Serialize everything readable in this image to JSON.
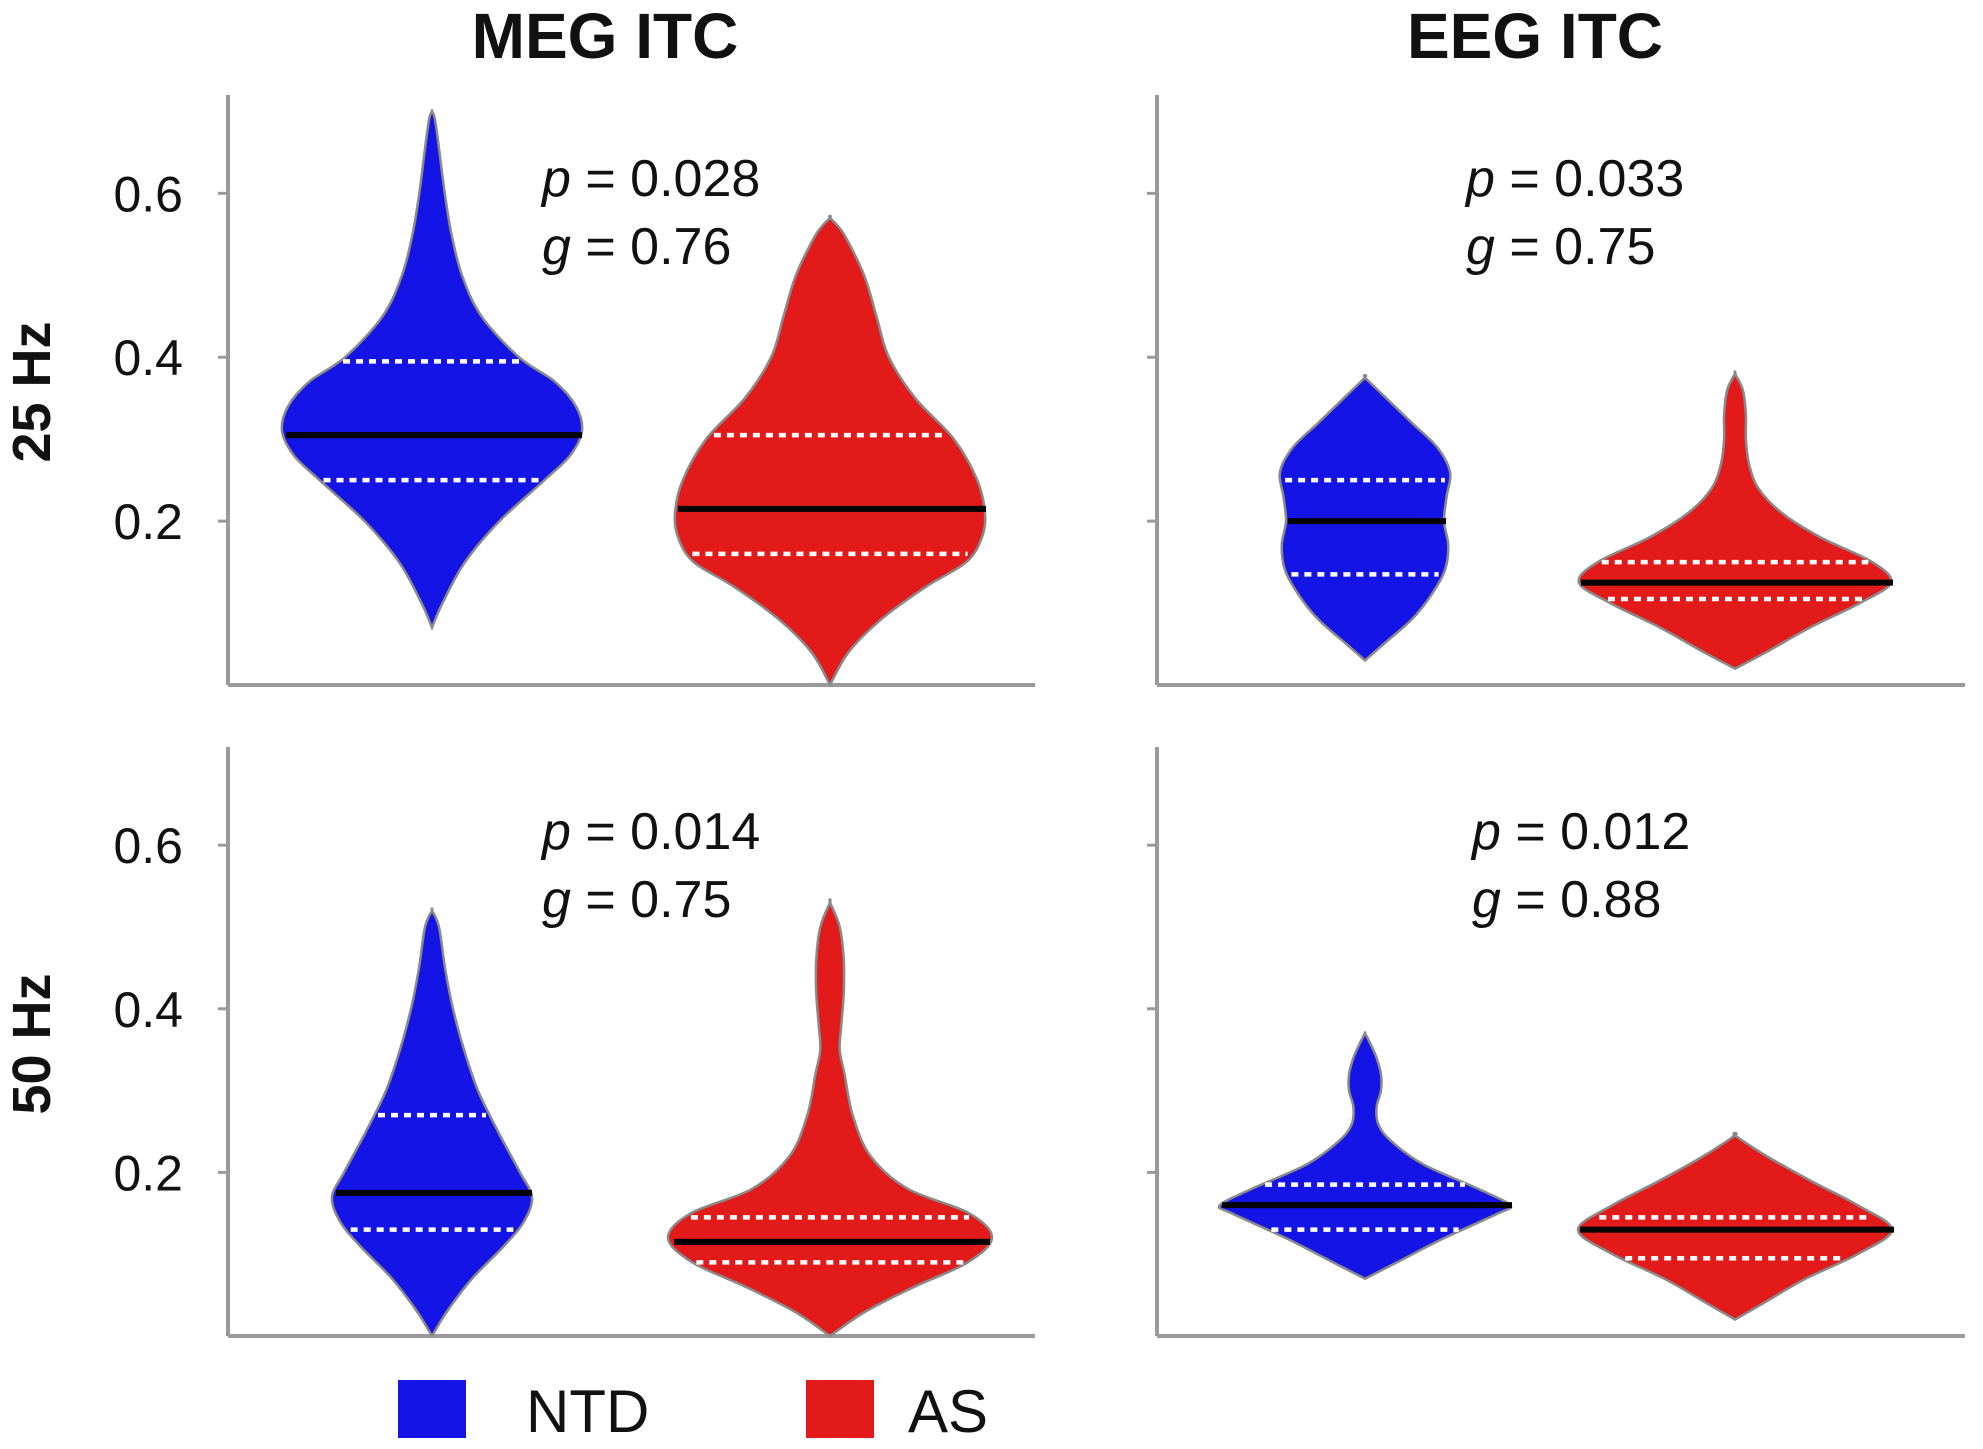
{
  "figure": {
    "column_titles": [
      "MEG ITC",
      "EEG ITC"
    ],
    "row_titles": [
      "25 Hz",
      "50 Hz"
    ]
  },
  "legend": {
    "items": [
      {
        "label": "NTD",
        "color": "#1414e6"
      },
      {
        "label": "AS",
        "color": "#e31a1a"
      }
    ]
  },
  "chart_data": [
    {
      "type": "violin",
      "title": "MEG ITC",
      "row": "25 Hz",
      "ylim": [
        0,
        0.72
      ],
      "yticks": [
        0.2,
        0.4,
        0.6
      ],
      "ytick_labels": [
        "0.2",
        "0.4",
        "0.6"
      ],
      "stats": {
        "p_symbol": "p",
        "p_text": " = 0.028",
        "g_symbol": "g",
        "g_text": " = 0.76"
      },
      "groups": [
        {
          "name": "NTD",
          "color": "#1414e6",
          "median": 0.305,
          "q1": 0.25,
          "q3": 0.395,
          "profile": [
            [
              0.07,
              0.0
            ],
            [
              0.1,
              0.07
            ],
            [
              0.15,
              0.22
            ],
            [
              0.2,
              0.45
            ],
            [
              0.25,
              0.75
            ],
            [
              0.28,
              0.92
            ],
            [
              0.31,
              1.0
            ],
            [
              0.34,
              0.96
            ],
            [
              0.37,
              0.82
            ],
            [
              0.4,
              0.58
            ],
            [
              0.45,
              0.33
            ],
            [
              0.5,
              0.2
            ],
            [
              0.55,
              0.13
            ],
            [
              0.6,
              0.085
            ],
            [
              0.65,
              0.05
            ],
            [
              0.69,
              0.02
            ],
            [
              0.7,
              0.0
            ]
          ]
        },
        {
          "name": "AS",
          "color": "#e31a1a",
          "median": 0.215,
          "q1": 0.16,
          "q3": 0.305,
          "profile": [
            [
              0.0,
              0.0
            ],
            [
              0.04,
              0.12
            ],
            [
              0.08,
              0.33
            ],
            [
              0.12,
              0.62
            ],
            [
              0.15,
              0.88
            ],
            [
              0.18,
              0.98
            ],
            [
              0.21,
              1.0
            ],
            [
              0.25,
              0.95
            ],
            [
              0.3,
              0.8
            ],
            [
              0.35,
              0.55
            ],
            [
              0.4,
              0.38
            ],
            [
              0.45,
              0.3
            ],
            [
              0.5,
              0.22
            ],
            [
              0.55,
              0.09
            ],
            [
              0.57,
              0.0
            ]
          ]
        }
      ]
    },
    {
      "type": "violin",
      "title": "EEG ITC",
      "row": "25 Hz",
      "ylim": [
        0,
        0.72
      ],
      "yticks": [
        0.2,
        0.4,
        0.6
      ],
      "ytick_labels": [
        "",
        "",
        ""
      ],
      "stats": {
        "p_symbol": "p",
        "p_text": " = 0.033",
        "g_symbol": "g",
        "g_text": " = 0.75"
      },
      "groups": [
        {
          "name": "NTD",
          "color": "#1414e6",
          "median": 0.2,
          "q1": 0.135,
          "q3": 0.25,
          "profile": [
            [
              0.03,
              0.0
            ],
            [
              0.05,
              0.22
            ],
            [
              0.08,
              0.55
            ],
            [
              0.11,
              0.78
            ],
            [
              0.14,
              0.94
            ],
            [
              0.17,
              0.98
            ],
            [
              0.2,
              0.93
            ],
            [
              0.23,
              0.96
            ],
            [
              0.26,
              1.0
            ],
            [
              0.29,
              0.85
            ],
            [
              0.32,
              0.55
            ],
            [
              0.35,
              0.25
            ],
            [
              0.375,
              0.0
            ]
          ]
        },
        {
          "name": "AS",
          "color": "#e31a1a",
          "median": 0.125,
          "q1": 0.105,
          "q3": 0.15,
          "profile": [
            [
              0.02,
              0.0
            ],
            [
              0.04,
              0.2
            ],
            [
              0.07,
              0.48
            ],
            [
              0.1,
              0.8
            ],
            [
              0.125,
              1.0
            ],
            [
              0.15,
              0.88
            ],
            [
              0.18,
              0.55
            ],
            [
              0.21,
              0.3
            ],
            [
              0.24,
              0.15
            ],
            [
              0.27,
              0.09
            ],
            [
              0.3,
              0.07
            ],
            [
              0.33,
              0.07
            ],
            [
              0.36,
              0.05
            ],
            [
              0.38,
              0.0
            ]
          ]
        }
      ]
    },
    {
      "type": "violin",
      "title": "MEG ITC",
      "row": "50 Hz",
      "ylim": [
        0,
        0.72
      ],
      "yticks": [
        0.2,
        0.4,
        0.6
      ],
      "ytick_labels": [
        "0.2",
        "0.4",
        "0.6"
      ],
      "stats": {
        "p_symbol": "p",
        "p_text": " = 0.014",
        "g_symbol": "g",
        "g_text": " = 0.75"
      },
      "groups": [
        {
          "name": "NTD",
          "color": "#1414e6",
          "median": 0.175,
          "q1": 0.13,
          "q3": 0.27,
          "profile": [
            [
              0.0,
              0.0
            ],
            [
              0.03,
              0.15
            ],
            [
              0.07,
              0.4
            ],
            [
              0.11,
              0.72
            ],
            [
              0.14,
              0.92
            ],
            [
              0.17,
              1.0
            ],
            [
              0.2,
              0.88
            ],
            [
              0.25,
              0.66
            ],
            [
              0.3,
              0.46
            ],
            [
              0.35,
              0.32
            ],
            [
              0.4,
              0.21
            ],
            [
              0.45,
              0.13
            ],
            [
              0.5,
              0.07
            ],
            [
              0.52,
              0.0
            ]
          ]
        },
        {
          "name": "AS",
          "color": "#e31a1a",
          "median": 0.115,
          "q1": 0.09,
          "q3": 0.145,
          "profile": [
            [
              0.0,
              0.0
            ],
            [
              0.03,
              0.22
            ],
            [
              0.06,
              0.52
            ],
            [
              0.09,
              0.85
            ],
            [
              0.12,
              1.0
            ],
            [
              0.15,
              0.86
            ],
            [
              0.18,
              0.48
            ],
            [
              0.22,
              0.25
            ],
            [
              0.27,
              0.14
            ],
            [
              0.32,
              0.09
            ],
            [
              0.35,
              0.06
            ],
            [
              0.38,
              0.07
            ],
            [
              0.42,
              0.085
            ],
            [
              0.46,
              0.085
            ],
            [
              0.5,
              0.06
            ],
            [
              0.53,
              0.0
            ]
          ]
        }
      ]
    },
    {
      "type": "violin",
      "title": "EEG ITC",
      "row": "50 Hz",
      "ylim": [
        0,
        0.72
      ],
      "yticks": [
        0.2,
        0.4,
        0.6
      ],
      "ytick_labels": [
        "",
        "",
        ""
      ],
      "stats": {
        "p_symbol": "p",
        "p_text": " = 0.012",
        "g_symbol": "g",
        "g_text": " = 0.88"
      },
      "groups": [
        {
          "name": "NTD",
          "color": "#1414e6",
          "median": 0.16,
          "q1": 0.13,
          "q3": 0.185,
          "profile": [
            [
              0.07,
              0.0
            ],
            [
              0.09,
              0.22
            ],
            [
              0.12,
              0.55
            ],
            [
              0.15,
              0.92
            ],
            [
              0.16,
              1.0
            ],
            [
              0.18,
              0.78
            ],
            [
              0.21,
              0.4
            ],
            [
              0.24,
              0.17
            ],
            [
              0.26,
              0.09
            ],
            [
              0.28,
              0.08
            ],
            [
              0.3,
              0.11
            ],
            [
              0.32,
              0.11
            ],
            [
              0.34,
              0.08
            ],
            [
              0.36,
              0.03
            ],
            [
              0.37,
              0.0
            ]
          ]
        },
        {
          "name": "AS",
          "color": "#e31a1a",
          "median": 0.13,
          "q1": 0.095,
          "q3": 0.145,
          "profile": [
            [
              0.02,
              0.0
            ],
            [
              0.04,
              0.18
            ],
            [
              0.07,
              0.45
            ],
            [
              0.1,
              0.78
            ],
            [
              0.13,
              1.0
            ],
            [
              0.16,
              0.78
            ],
            [
              0.19,
              0.48
            ],
            [
              0.22,
              0.2
            ],
            [
              0.245,
              0.0
            ]
          ]
        }
      ]
    }
  ]
}
